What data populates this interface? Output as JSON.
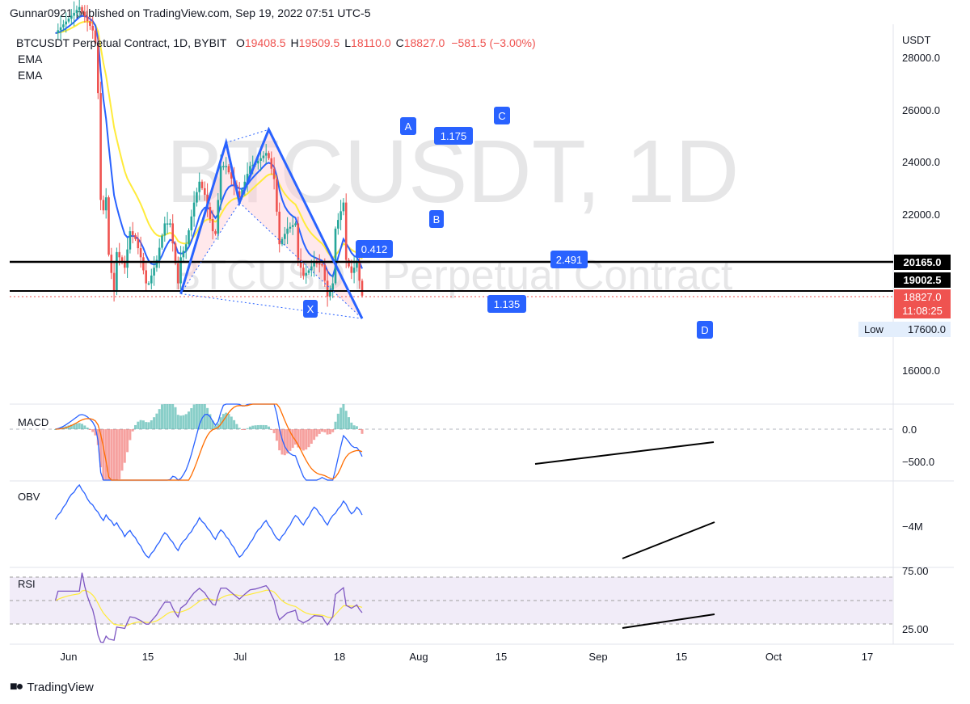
{
  "header": {
    "published": "Gunnar0921 published on TradingView.com, Sep 19, 2022 07:51 UTC-5"
  },
  "legend": {
    "symbol": "BTCUSDT Perpetual Contract, 1D, BYBIT",
    "open_label": "O",
    "open": "19408.5",
    "high_label": "H",
    "high": "19509.5",
    "low_label": "L",
    "low": "18110.0",
    "close_label": "C",
    "close": "18827.0",
    "change": "−581.5 (−3.00%)",
    "ema1": "EMA",
    "ema2": "EMA"
  },
  "watermark": {
    "main": "BTCUSDT, 1D",
    "sub": "BTCUSDT Perpetual Contract"
  },
  "price_axis": {
    "currency": "USDT",
    "ticks": [
      "28000.0",
      "26000.0",
      "24000.0",
      "22000.0",
      "16000.0"
    ],
    "label_20165": "20165.0",
    "label_19002": "19002.5",
    "last_price": "18827.0",
    "countdown": "11:08:25",
    "low_label": "Low",
    "low_value": "17600.0"
  },
  "pattern": {
    "x": "X",
    "a": "A",
    "b": "B",
    "c": "C",
    "d": "D",
    "ratio_xb": "0.412",
    "ratio_ac": "1.175",
    "ratio_bd": "2.491",
    "ratio_xd": "1.135"
  },
  "panes": {
    "macd_label": "MACD",
    "macd_ticks": [
      "0.0",
      "−500.0"
    ],
    "obv_label": "OBV",
    "obv_ticks": [
      "−4M"
    ],
    "rsi_label": "RSI",
    "rsi_ticks": [
      "75.00",
      "25.00"
    ]
  },
  "time_axis": {
    "ticks": [
      "Jun",
      "15",
      "Jul",
      "18",
      "Aug",
      "15",
      "Sep",
      "15",
      "Oct",
      "17"
    ]
  },
  "footer": {
    "brand": "TradingView"
  },
  "colors": {
    "up": "#26a69a",
    "down": "#ef5350",
    "pattern_blue": "#2962ff",
    "ema_fast": "#2962ff",
    "ema_slow": "#ffeb3b",
    "macd_signal": "#ff6d00",
    "rsi_line": "#7e57c2"
  },
  "chart_data": {
    "type": "candlestick",
    "title": "BTCUSDT Perpetual Contract, 1D, BYBIT",
    "x_range": [
      "2022-05-27",
      "2022-10-22"
    ],
    "ylim": [
      15000,
      28800
    ],
    "horizontal_levels": [
      20165.0,
      19002.5
    ],
    "last_close": 18827.0,
    "pattern_points": [
      {
        "label": "X",
        "date": "2022-07-13",
        "price": 18900
      },
      {
        "label": "A",
        "date": "2022-07-30",
        "price": 24700
      },
      {
        "label": "B",
        "date": "2022-08-04",
        "price": 22400
      },
      {
        "label": "C",
        "date": "2022-08-15",
        "price": 25200
      },
      {
        "label": "D",
        "date": "2022-09-19",
        "price": 17950
      }
    ],
    "close_series": [
      {
        "date": "2022-05-27",
        "close": 28900
      },
      {
        "date": "2022-06-05",
        "close": 29900
      },
      {
        "date": "2022-06-10",
        "close": 29000
      },
      {
        "date": "2022-06-11",
        "close": 28500
      },
      {
        "date": "2022-06-12",
        "close": 26600
      },
      {
        "date": "2022-06-13",
        "close": 22500
      },
      {
        "date": "2022-06-14",
        "close": 22100
      },
      {
        "date": "2022-06-15",
        "close": 22600
      },
      {
        "date": "2022-06-16",
        "close": 20400
      },
      {
        "date": "2022-06-18",
        "close": 19000
      },
      {
        "date": "2022-06-19",
        "close": 20500
      },
      {
        "date": "2022-06-22",
        "close": 19900
      },
      {
        "date": "2022-06-24",
        "close": 21300
      },
      {
        "date": "2022-06-26",
        "close": 21000
      },
      {
        "date": "2022-06-28",
        "close": 20300
      },
      {
        "date": "2022-06-30",
        "close": 19300
      },
      {
        "date": "2022-07-01",
        "close": 19300
      },
      {
        "date": "2022-07-04",
        "close": 20200
      },
      {
        "date": "2022-07-07",
        "close": 21600
      },
      {
        "date": "2022-07-09",
        "close": 21600
      },
      {
        "date": "2022-07-12",
        "close": 19300
      },
      {
        "date": "2022-07-13",
        "close": 20300
      },
      {
        "date": "2022-07-15",
        "close": 20800
      },
      {
        "date": "2022-07-18",
        "close": 22400
      },
      {
        "date": "2022-07-20",
        "close": 23200
      },
      {
        "date": "2022-07-22",
        "close": 22700
      },
      {
        "date": "2022-07-25",
        "close": 21300
      },
      {
        "date": "2022-07-26",
        "close": 21200
      },
      {
        "date": "2022-07-28",
        "close": 23800
      },
      {
        "date": "2022-07-30",
        "close": 23800
      },
      {
        "date": "2022-08-04",
        "close": 22600
      },
      {
        "date": "2022-08-08",
        "close": 23800
      },
      {
        "date": "2022-08-10",
        "close": 23900
      },
      {
        "date": "2022-08-14",
        "close": 24300
      },
      {
        "date": "2022-08-15",
        "close": 24100
      },
      {
        "date": "2022-08-17",
        "close": 23300
      },
      {
        "date": "2022-08-19",
        "close": 20800
      },
      {
        "date": "2022-08-22",
        "close": 21400
      },
      {
        "date": "2022-08-25",
        "close": 21600
      },
      {
        "date": "2022-08-26",
        "close": 20200
      },
      {
        "date": "2022-08-28",
        "close": 19600
      },
      {
        "date": "2022-08-30",
        "close": 19800
      },
      {
        "date": "2022-09-01",
        "close": 20100
      },
      {
        "date": "2022-09-04",
        "close": 20000
      },
      {
        "date": "2022-09-06",
        "close": 18800
      },
      {
        "date": "2022-09-08",
        "close": 19300
      },
      {
        "date": "2022-09-09",
        "close": 21400
      },
      {
        "date": "2022-09-12",
        "close": 22400
      },
      {
        "date": "2022-09-13",
        "close": 20200
      },
      {
        "date": "2022-09-15",
        "close": 19700
      },
      {
        "date": "2022-09-17",
        "close": 20100
      },
      {
        "date": "2022-09-18",
        "close": 19400
      },
      {
        "date": "2022-09-19",
        "close": 18827
      }
    ]
  }
}
